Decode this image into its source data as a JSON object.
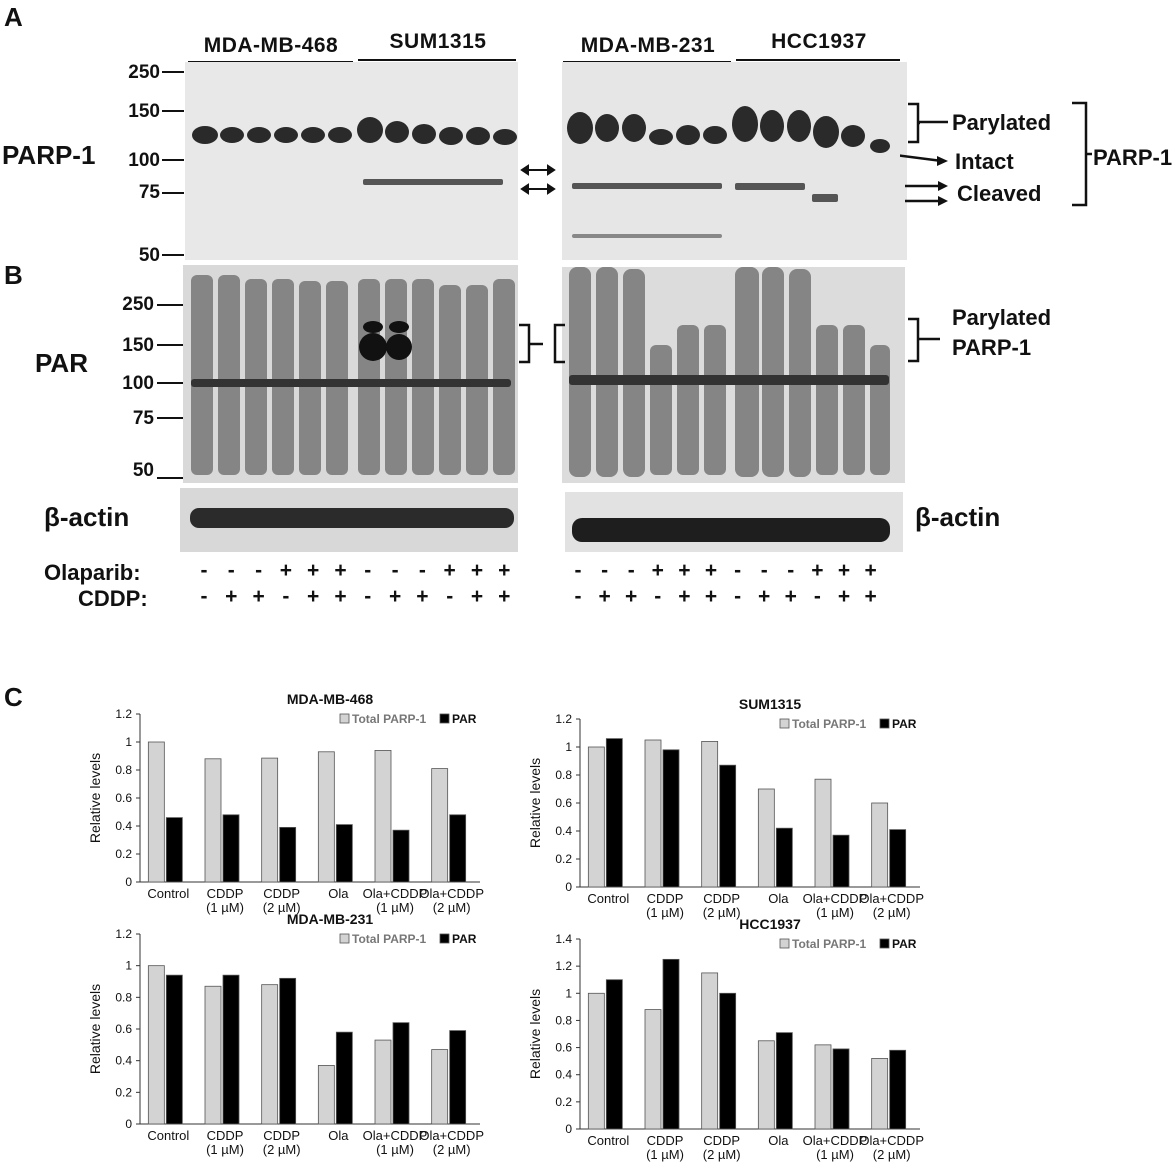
{
  "panels": {
    "a": "A",
    "b": "B",
    "c": "C"
  },
  "cell_lines": {
    "mda468": "MDA-MB-468",
    "sum1315": "SUM1315",
    "mda231": "MDA-MB-231",
    "hcc1937": "HCC1937"
  },
  "antibodies": {
    "parp1": "PARP-1",
    "par": "PAR",
    "actin_left": "β-actin",
    "actin_right": "β-actin"
  },
  "mw_markers_a": [
    "250",
    "150",
    "100",
    "75",
    "50"
  ],
  "mw_markers_b": [
    "250",
    "150",
    "100",
    "75",
    "50"
  ],
  "annotations": {
    "parylated": "Parylated",
    "intact": "Intact",
    "cleaved": "Cleaved",
    "parp1_bracket": "PARP-1",
    "parylated_b_line1": "Parylated",
    "parylated_b_line2": "PARP-1"
  },
  "treatments": {
    "olaparib_label": "Olaparib:",
    "cddp_label": "CDDP:",
    "olaparib_left": [
      "-",
      "-",
      "-",
      "+",
      "+",
      "+",
      "-",
      "-",
      "-",
      "+",
      "+",
      "+"
    ],
    "cddp_left": [
      "-",
      "+",
      "+",
      "-",
      "+",
      "+",
      "-",
      "+",
      "+",
      "-",
      "+",
      "+"
    ],
    "olaparib_right": [
      "-",
      "-",
      "-",
      "+",
      "+",
      "+",
      "-",
      "-",
      "-",
      "+",
      "+",
      "+"
    ],
    "cddp_right": [
      "-",
      "+",
      "+",
      "-",
      "+",
      "+",
      "-",
      "+",
      "+",
      "-",
      "+",
      "+"
    ]
  },
  "chart_data": [
    {
      "type": "bar",
      "title": "MDA-MB-468",
      "ylabel": "Relative levels",
      "ylim": [
        0,
        1.2
      ],
      "yticks": [
        "0",
        "0.2",
        "0.4",
        "0.6",
        "0.8",
        "1",
        "1.2"
      ],
      "categories": [
        "Control",
        "CDDP (1 µM)",
        "CDDP (2 µM)",
        "Ola",
        "Ola+CDDP (1 µM)",
        "Ola+CDDP (2 µM)"
      ],
      "series": [
        {
          "name": "Total PARP-1",
          "color": "#d3d3d3",
          "values": [
            1.0,
            0.88,
            0.885,
            0.93,
            0.94,
            0.81
          ]
        },
        {
          "name": "PAR",
          "color": "#000000",
          "values": [
            0.46,
            0.48,
            0.39,
            0.41,
            0.37,
            0.48
          ]
        }
      ],
      "legend": "top-right"
    },
    {
      "type": "bar",
      "title": "SUM1315",
      "ylabel": "Relative levels",
      "ylim": [
        0,
        1.2
      ],
      "yticks": [
        "0",
        "0.2",
        "0.4",
        "0.6",
        "0.8",
        "1",
        "1.2"
      ],
      "categories": [
        "Control",
        "CDDP (1 µM)",
        "CDDP (2 µM)",
        "Ola",
        "Ola+CDDP (1 µM)",
        "Ola+CDDP (2 µM)"
      ],
      "series": [
        {
          "name": "Total PARP-1",
          "color": "#d3d3d3",
          "values": [
            1.0,
            1.05,
            1.04,
            0.7,
            0.77,
            0.6
          ]
        },
        {
          "name": "PAR",
          "color": "#000000",
          "values": [
            1.06,
            0.98,
            0.87,
            0.42,
            0.37,
            0.41
          ]
        }
      ],
      "legend": "top-right"
    },
    {
      "type": "bar",
      "title": "MDA-MB-231",
      "ylabel": "Relative levels",
      "ylim": [
        0,
        1.2
      ],
      "yticks": [
        "0",
        "0.2",
        "0.4",
        "0.6",
        "0.8",
        "1",
        "1.2"
      ],
      "categories": [
        "Control",
        "CDDP (1 µM)",
        "CDDP (2 µM)",
        "Ola",
        "Ola+CDDP (1 µM)",
        "Ola+CDDP (2 µM)"
      ],
      "series": [
        {
          "name": "Total PARP-1",
          "color": "#d3d3d3",
          "values": [
            1.0,
            0.87,
            0.88,
            0.37,
            0.53,
            0.47
          ]
        },
        {
          "name": "PAR",
          "color": "#000000",
          "values": [
            0.94,
            0.94,
            0.92,
            0.58,
            0.64,
            0.59
          ]
        }
      ],
      "legend": "top-right"
    },
    {
      "type": "bar",
      "title": "HCC1937",
      "ylabel": "Relative levels",
      "ylim": [
        0,
        1.4
      ],
      "yticks": [
        "0",
        "0.2",
        "0.4",
        "0.6",
        "0.8",
        "1",
        "1.2",
        "1.4"
      ],
      "categories": [
        "Control",
        "CDDP (1 µM)",
        "CDDP (2 µM)",
        "Ola",
        "Ola+CDDP (1 µM)",
        "Ola+CDDP (2 µM)"
      ],
      "series": [
        {
          "name": "Total PARP-1",
          "color": "#d3d3d3",
          "values": [
            1.0,
            0.88,
            1.15,
            0.65,
            0.62,
            0.52
          ]
        },
        {
          "name": "PAR",
          "color": "#000000",
          "values": [
            1.1,
            1.25,
            1.0,
            0.71,
            0.59,
            0.58
          ]
        }
      ],
      "legend": "top-right"
    }
  ]
}
